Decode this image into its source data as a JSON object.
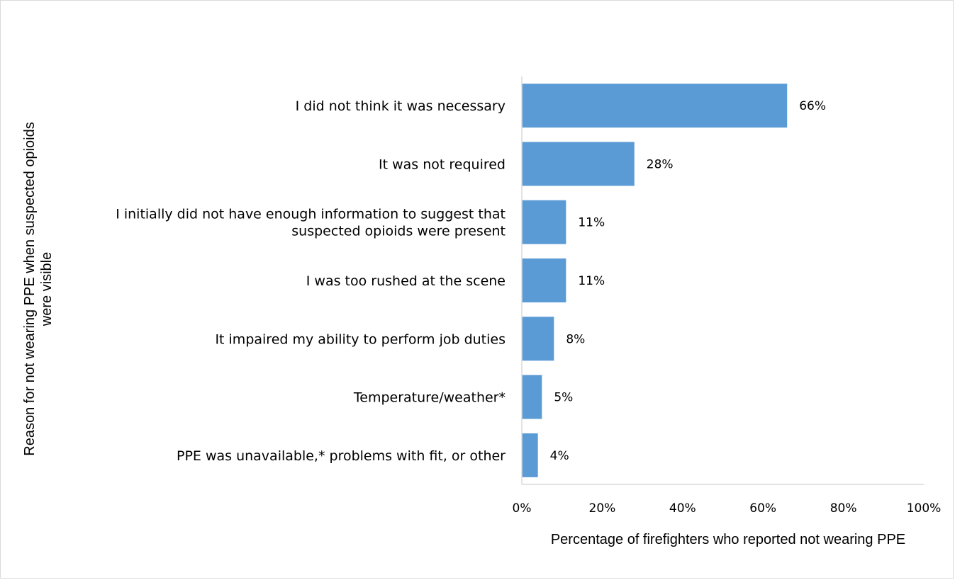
{
  "chart_data": {
    "type": "bar",
    "orientation": "horizontal",
    "categories": [
      "I did not think it was necessary",
      "It was not required",
      [
        "I initially did not have enough information to suggest that",
        "suspected opioids were present"
      ],
      "I was too rushed at the scene",
      "It impaired my ability to perform job duties",
      "Temperature/weather*",
      "PPE was unavailable,* problems with fit, or other"
    ],
    "values": [
      66,
      28,
      11,
      11,
      8,
      5,
      4
    ],
    "data_labels": [
      "66%",
      "28%",
      "11%",
      "11%",
      "8%",
      "5%",
      "4%"
    ],
    "xlabel": "Percentage of firefighters who reported not wearing PPE",
    "ylabel": [
      "Reason for not wearing PPE when suspected opioids",
      "were visible"
    ],
    "xlim": [
      0,
      100
    ],
    "xticks": [
      "0%",
      "20%",
      "40%",
      "60%",
      "80%",
      "100%"
    ],
    "grid": false,
    "bar_color": "#5b9bd5",
    "axis_color": "#d9d9d9"
  }
}
